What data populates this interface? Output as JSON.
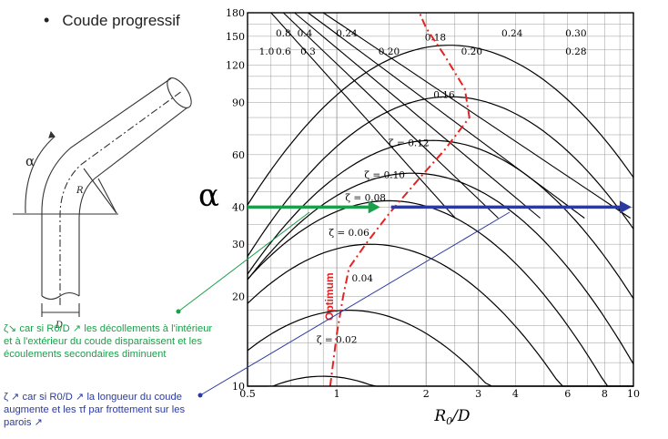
{
  "title": "Coude progressif",
  "alpha_symbol": "α",
  "figure": {
    "alpha_label": "α",
    "radius_label": "R",
    "diameter_label": "D"
  },
  "chart_data": {
    "type": "line",
    "x_scale": "log",
    "y_scale": "log",
    "xlim": [
      0.5,
      10
    ],
    "ylim": [
      10,
      180
    ],
    "xlabel": "R0/D",
    "ylabel": "α",
    "x_ticks": [
      {
        "v": 0.5,
        "t": "0.5"
      },
      {
        "v": 1,
        "t": "1"
      },
      {
        "v": 2,
        "t": "2"
      },
      {
        "v": 3,
        "t": "3"
      },
      {
        "v": 4,
        "t": "4"
      },
      {
        "v": 6,
        "t": "6"
      },
      {
        "v": 8,
        "t": "8"
      },
      {
        "v": 10,
        "t": "10"
      }
    ],
    "y_ticks": [
      {
        "v": 10,
        "t": "10"
      },
      {
        "v": 20,
        "t": "20"
      },
      {
        "v": 30,
        "t": "30"
      },
      {
        "v": 40,
        "t": "40"
      },
      {
        "v": 60,
        "t": "60"
      },
      {
        "v": 90,
        "t": "90"
      },
      {
        "v": 120,
        "t": "120"
      },
      {
        "v": 150,
        "t": "150"
      },
      {
        "v": 180,
        "t": "180"
      }
    ],
    "contour_labels": [
      {
        "x": 0.66,
        "y": 150,
        "t": "0.8"
      },
      {
        "x": 0.78,
        "y": 150,
        "t": "0.4"
      },
      {
        "x": 0.58,
        "y": 130,
        "t": "1.0"
      },
      {
        "x": 0.66,
        "y": 130,
        "t": "0.6"
      },
      {
        "x": 0.8,
        "y": 130,
        "t": "0.3"
      },
      {
        "x": 1.08,
        "y": 150,
        "t": "0.24"
      },
      {
        "x": 1.5,
        "y": 130,
        "t": "0.20"
      },
      {
        "x": 2.15,
        "y": 145,
        "t": "0.18"
      },
      {
        "x": 2.85,
        "y": 130,
        "t": "0.20"
      },
      {
        "x": 3.9,
        "y": 150,
        "t": "0.24"
      },
      {
        "x": 6.4,
        "y": 150,
        "t": "0.30"
      },
      {
        "x": 6.4,
        "y": 130,
        "t": "0.28"
      },
      {
        "x": 2.3,
        "y": 93,
        "t": "0.16"
      },
      {
        "x": 1.75,
        "y": 64,
        "t": "ζ = 0.12"
      },
      {
        "x": 1.45,
        "y": 50,
        "t": "ζ = 0.10"
      },
      {
        "x": 1.25,
        "y": 42,
        "t": "ζ = 0.08"
      },
      {
        "x": 1.1,
        "y": 32,
        "t": "ζ = 0.06"
      },
      {
        "x": 1.22,
        "y": 22.5,
        "t": "0.04"
      },
      {
        "x": 1.0,
        "y": 14,
        "t": "ζ = 0.02"
      }
    ],
    "optimum_label": "Optimum",
    "arrow_y": 40,
    "series": [
      {
        "name": "ζ = 0.02",
        "peak_x": 0.9,
        "peak_y": 10.8
      },
      {
        "name": "ζ = 0.04",
        "peak_x": 1.1,
        "peak_y": 18
      },
      {
        "name": "ζ = 0.06",
        "peak_x": 1.3,
        "peak_y": 30
      },
      {
        "name": "ζ = 0.08",
        "peak_x": 1.5,
        "peak_y": 42
      },
      {
        "name": "ζ = 0.10",
        "peak_x": 1.8,
        "peak_y": 52
      },
      {
        "name": "ζ = 0.12",
        "peak_x": 2.1,
        "peak_y": 67
      },
      {
        "name": "ζ = 0.16",
        "peak_x": 2.4,
        "peak_y": 94
      },
      {
        "name": "ζ = 0.18",
        "peak_x": 2.4,
        "peak_y": 140
      }
    ],
    "optimum_curve": [
      {
        "x": 0.95,
        "y": 10
      },
      {
        "x": 1.0,
        "y": 15
      },
      {
        "x": 1.05,
        "y": 20
      },
      {
        "x": 1.1,
        "y": 25
      },
      {
        "x": 1.25,
        "y": 30
      },
      {
        "x": 1.5,
        "y": 38
      },
      {
        "x": 1.9,
        "y": 50
      },
      {
        "x": 2.3,
        "y": 62
      },
      {
        "x": 2.8,
        "y": 80
      },
      {
        "x": 2.7,
        "y": 100
      },
      {
        "x": 2.3,
        "y": 130
      },
      {
        "x": 2.0,
        "y": 160
      },
      {
        "x": 1.9,
        "y": 180
      }
    ]
  },
  "notes": {
    "green": "ζ↘  car si R0/D ↗ les décollements à l'intérieur et à l'extérieur du coude disparaissent et les écoulements secondaires diminuent",
    "blue": "ζ ↗ car si R0/D ↗ la longueur du coude augmente et les τf par frottement sur les parois ↗"
  },
  "colors": {
    "green": "#1aa04a",
    "blue": "#2b3aa0",
    "red": "#e32222",
    "chart_ink": "#000000"
  }
}
